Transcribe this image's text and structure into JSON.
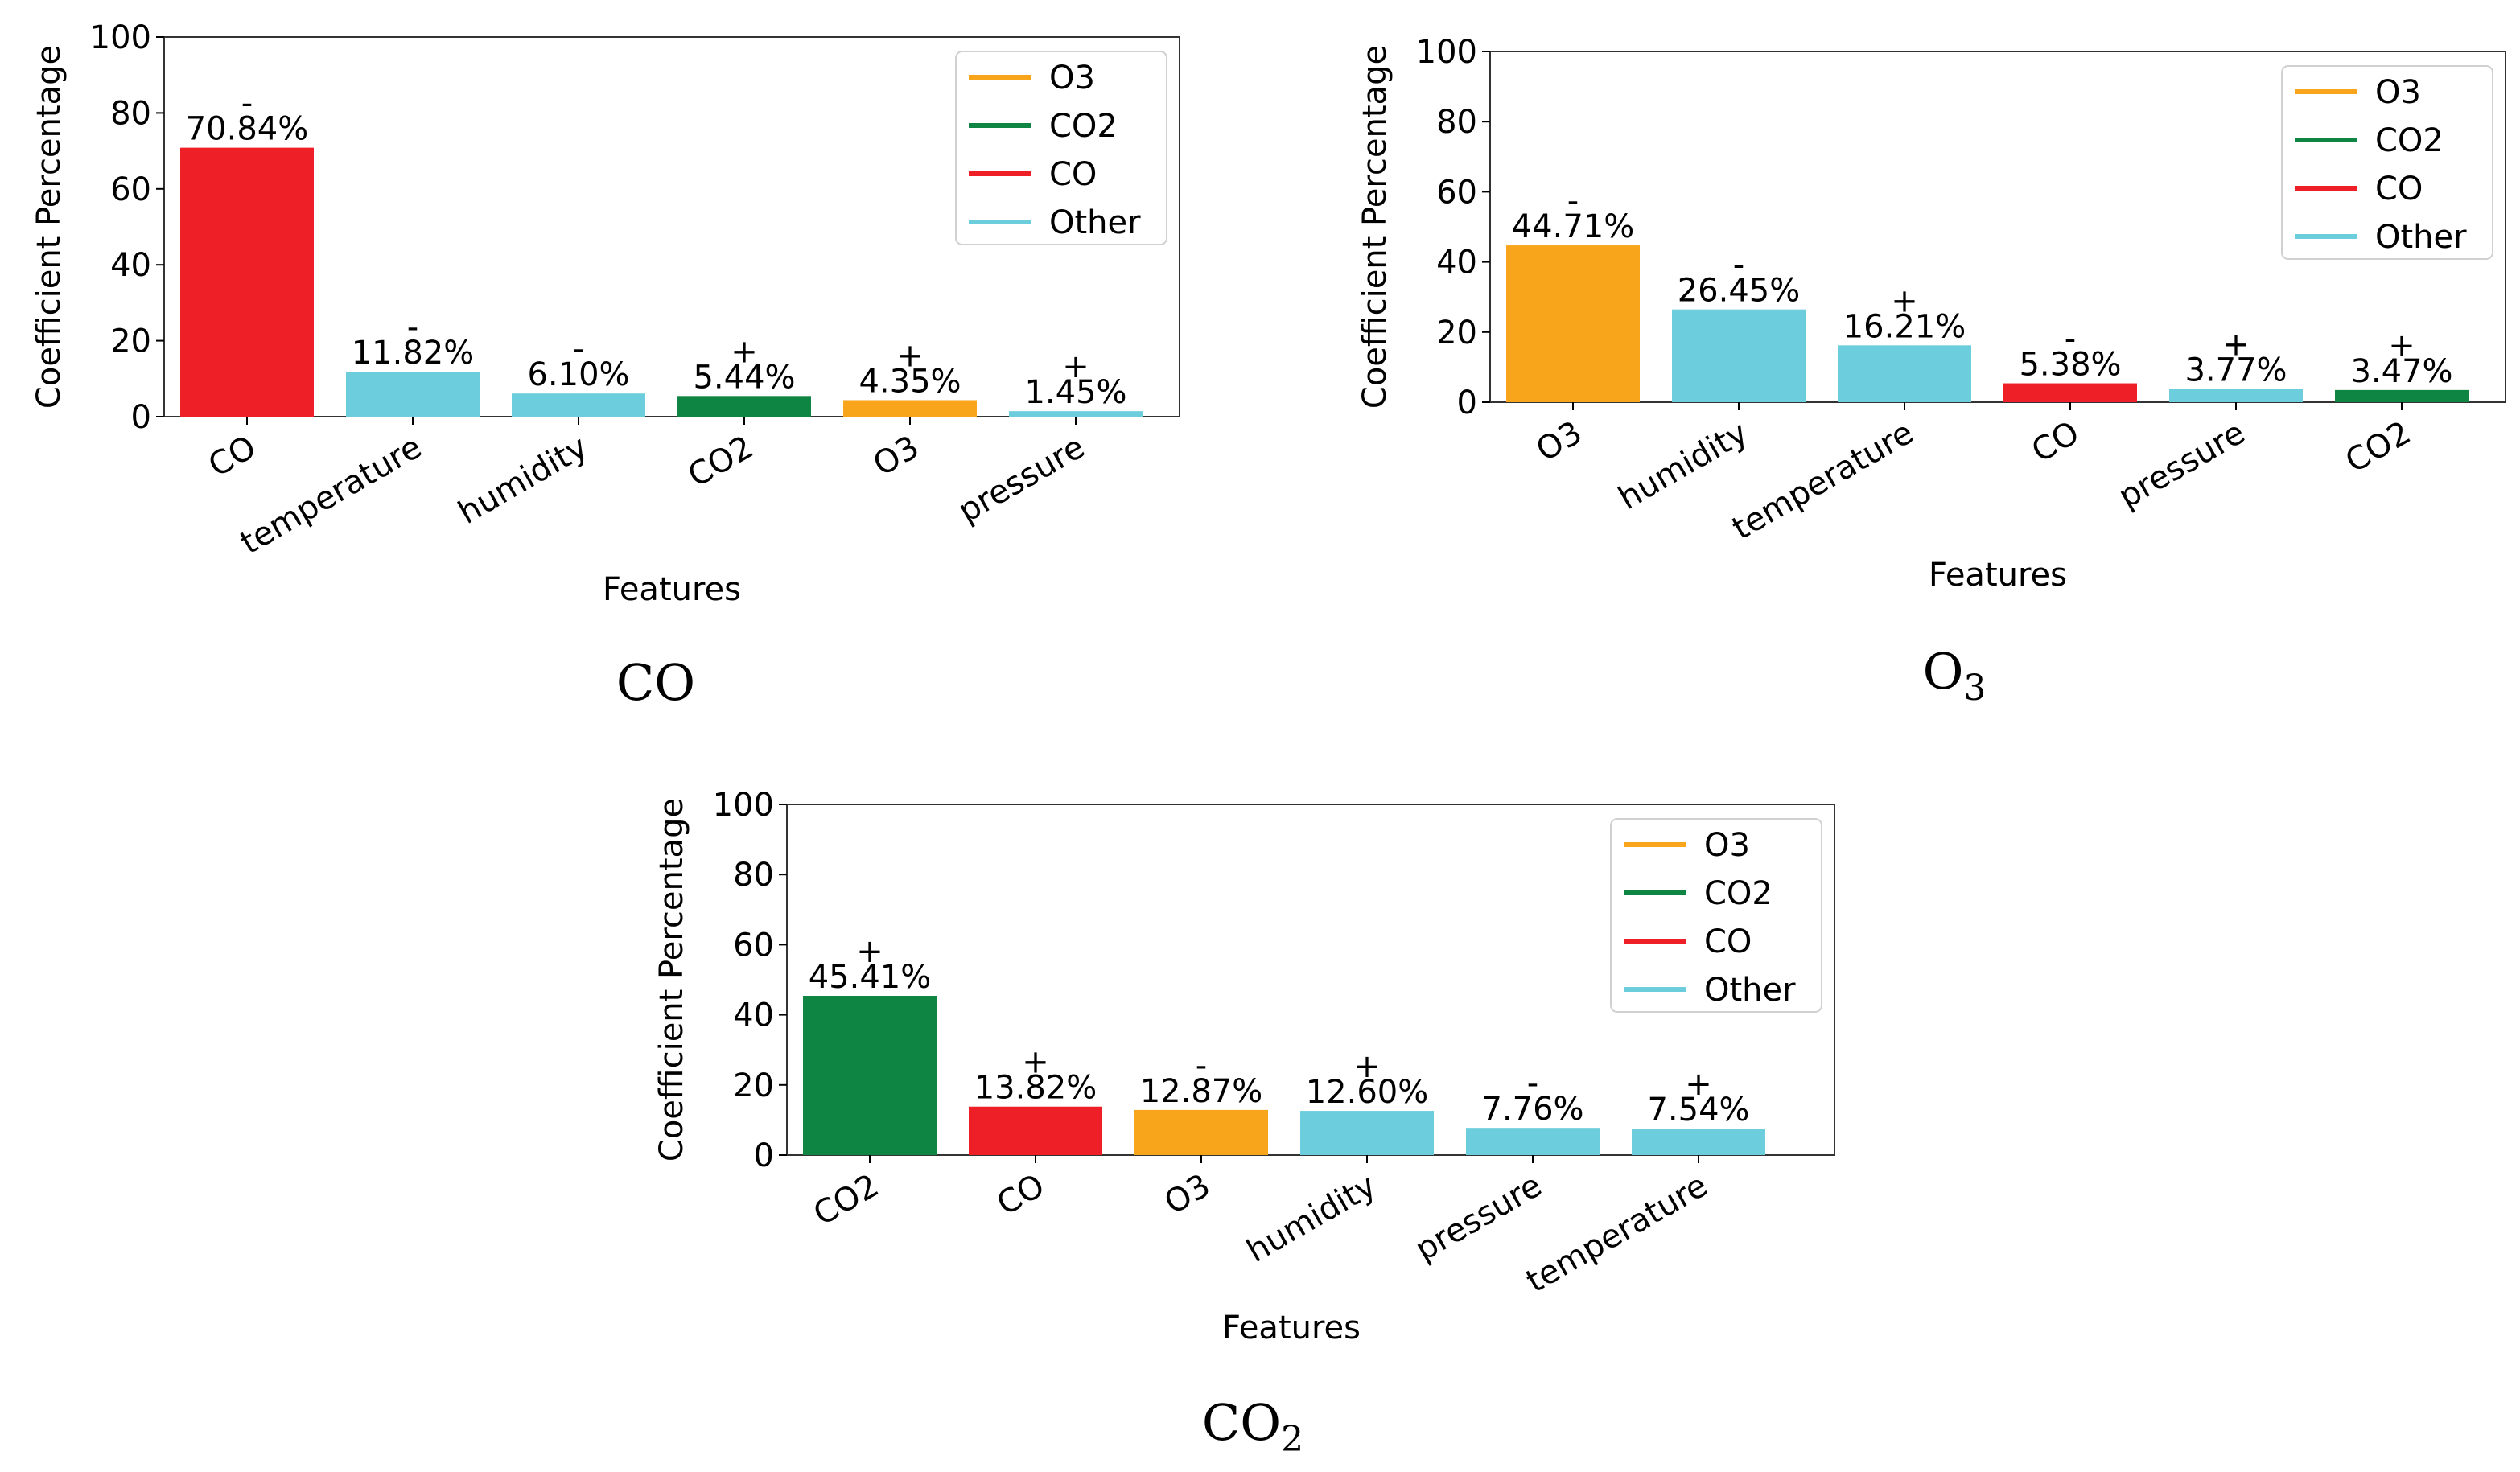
{
  "colors": {
    "O3": "#f9a51b",
    "CO2": "#0e8542",
    "CO": "#ee1f26",
    "Other": "#6ccddd"
  },
  "legend": [
    {
      "label": "O3",
      "color_key": "O3"
    },
    {
      "label": "CO2",
      "color_key": "CO2"
    },
    {
      "label": "CO",
      "color_key": "CO"
    },
    {
      "label": "Other",
      "color_key": "Other"
    }
  ],
  "chart_data": [
    {
      "type": "bar",
      "caption": "CO",
      "caption_sub": "",
      "xlabel": "Features",
      "ylabel": "Coefficient Percentage",
      "ylim": [
        0,
        100
      ],
      "yticks": [
        "0",
        "20",
        "40",
        "60",
        "80",
        "100"
      ],
      "categories": [
        "CO",
        "temperature",
        "humidity",
        "CO2",
        "O3",
        "pressure"
      ],
      "values": [
        70.84,
        11.82,
        6.1,
        5.44,
        4.35,
        1.45
      ],
      "value_labels": [
        "70.84%",
        "11.82%",
        "6.10%",
        "5.44%",
        "4.35%",
        "1.45%"
      ],
      "signs": [
        "-",
        "-",
        "-",
        "+",
        "+",
        "+"
      ],
      "bar_color_keys": [
        "CO",
        "Other",
        "Other",
        "CO2",
        "O3",
        "Other"
      ],
      "legend_position": "top-right",
      "grid": false
    },
    {
      "type": "bar",
      "caption": "O",
      "caption_sub": "3",
      "xlabel": "Features",
      "ylabel": "Coefficient Percentage",
      "ylim": [
        0,
        100
      ],
      "yticks": [
        "0",
        "20",
        "40",
        "60",
        "80",
        "100"
      ],
      "categories": [
        "O3",
        "humidity",
        "temperature",
        "CO",
        "pressure",
        "CO2"
      ],
      "values": [
        44.71,
        26.45,
        16.21,
        5.38,
        3.77,
        3.47
      ],
      "value_labels": [
        "44.71%",
        "26.45%",
        "16.21%",
        "5.38%",
        "3.77%",
        "3.47%"
      ],
      "signs": [
        "-",
        "-",
        "+",
        "-",
        "+",
        "+"
      ],
      "bar_color_keys": [
        "O3",
        "Other",
        "Other",
        "CO",
        "Other",
        "CO2"
      ],
      "legend_position": "top-right",
      "grid": false
    },
    {
      "type": "bar",
      "caption": "CO",
      "caption_sub": "2",
      "xlabel": "Features",
      "ylabel": "Coefficient Percentage",
      "ylim": [
        0,
        100
      ],
      "yticks": [
        "0",
        "20",
        "40",
        "60",
        "80",
        "100"
      ],
      "categories": [
        "CO2",
        "CO",
        "O3",
        "humidity",
        "pressure",
        "temperature"
      ],
      "values": [
        45.41,
        13.82,
        12.87,
        12.6,
        7.76,
        7.54
      ],
      "value_labels": [
        "45.41%",
        "13.82%",
        "12.87%",
        "12.60%",
        "7.76%",
        "7.54%"
      ],
      "signs": [
        "+",
        "+",
        "-",
        "+",
        "-",
        "+"
      ],
      "bar_color_keys": [
        "CO2",
        "CO",
        "O3",
        "Other",
        "Other",
        "Other"
      ],
      "legend_position": "top-right",
      "grid": false
    }
  ]
}
